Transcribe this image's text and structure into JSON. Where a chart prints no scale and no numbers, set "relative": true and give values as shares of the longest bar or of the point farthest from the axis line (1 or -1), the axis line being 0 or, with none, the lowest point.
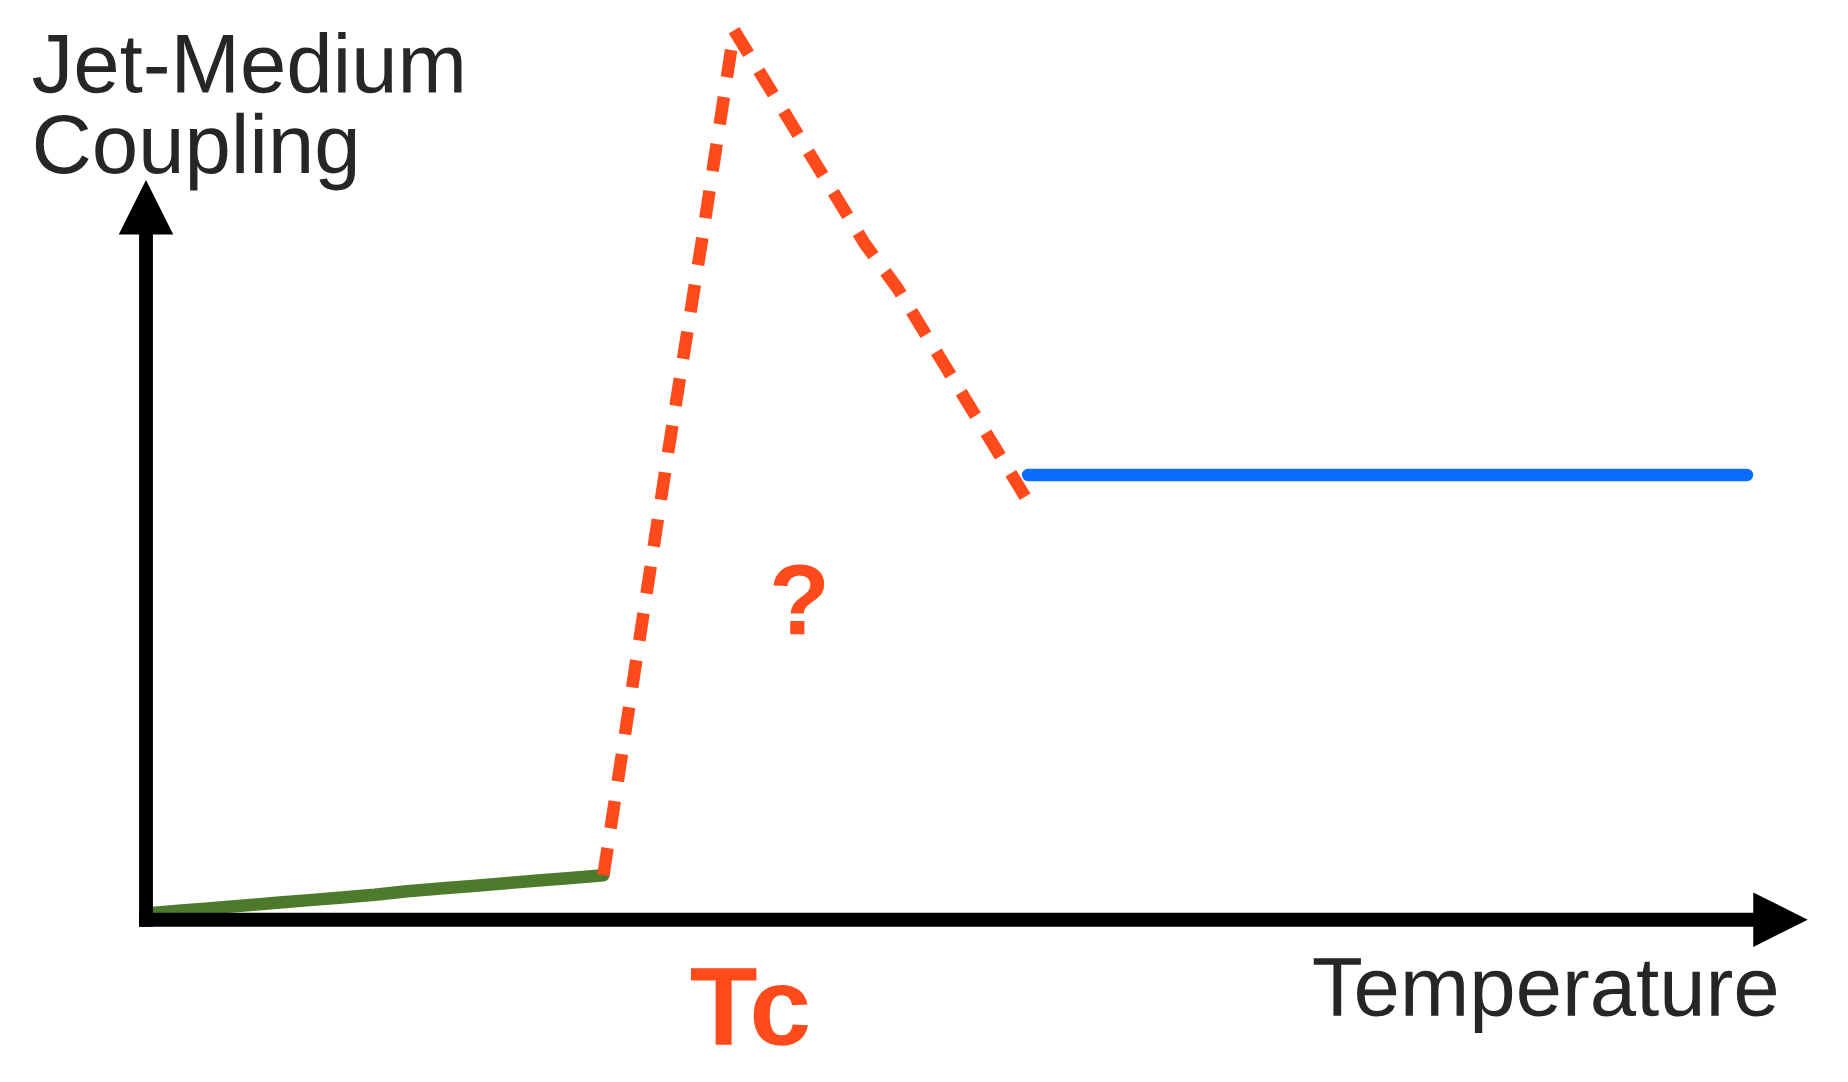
{
  "chart_data": {
    "type": "line",
    "relative": true,
    "xlabel": "Temperature",
    "ylabel": "Jet-Medium\nCoupling",
    "categories": [
      null,
      null,
      null,
      null,
      null,
      null,
      null,
      null,
      null,
      null,
      null,
      null,
      null,
      null,
      null,
      null,
      null,
      null,
      null,
      null,
      null,
      null,
      null,
      null,
      null,
      null,
      null,
      null,
      null,
      null,
      null,
      null,
      null,
      null,
      null,
      null,
      null,
      null,
      null,
      null,
      null,
      null,
      null,
      null,
      null,
      null,
      null,
      null,
      null,
      null
    ],
    "series": [
      {
        "color": "#4e7a2e",
        "line_style": "solid",
        "values": [
          0.007,
          0.01,
          0.013,
          0.016,
          0.019,
          0.022,
          0.025,
          0.028,
          0.032,
          0.035,
          0.038,
          0.041,
          0.044,
          0.047,
          0.05,
          null,
          null,
          null,
          null,
          null,
          null,
          null,
          null,
          null,
          null,
          null,
          null,
          null,
          null,
          null,
          null,
          null,
          null,
          null,
          null,
          null,
          null,
          null,
          null,
          null,
          null,
          null,
          null,
          null,
          null,
          null,
          null,
          null,
          null,
          null
        ]
      },
      {
        "color": "#ff4a1c",
        "line_style": "dashed",
        "values": [
          null,
          null,
          null,
          null,
          null,
          null,
          null,
          null,
          null,
          null,
          null,
          null,
          null,
          null,
          0.05,
          0.29,
          0.53,
          0.76,
          1.0,
          0.94,
          0.88,
          0.82,
          0.76,
          0.71,
          0.65,
          0.59,
          0.53,
          0.47,
          null,
          null,
          null,
          null,
          null,
          null,
          null,
          null,
          null,
          null,
          null,
          null,
          null,
          null,
          null,
          null,
          null,
          null,
          null,
          null,
          null,
          null
        ]
      },
      {
        "color": "#0a6cff",
        "line_style": "solid",
        "values": [
          null,
          null,
          null,
          null,
          null,
          null,
          null,
          null,
          null,
          null,
          null,
          null,
          null,
          null,
          null,
          null,
          null,
          null,
          null,
          null,
          null,
          null,
          null,
          null,
          null,
          null,
          null,
          0.5,
          0.5,
          0.5,
          0.5,
          0.5,
          0.5,
          0.5,
          0.5,
          0.5,
          0.5,
          0.5,
          0.5,
          0.5,
          0.5,
          0.5,
          0.5,
          0.5,
          0.5,
          0.5,
          0.5,
          0.5,
          0.5,
          0.5
        ]
      }
    ],
    "annotations": [
      "?",
      "Tc"
    ]
  }
}
